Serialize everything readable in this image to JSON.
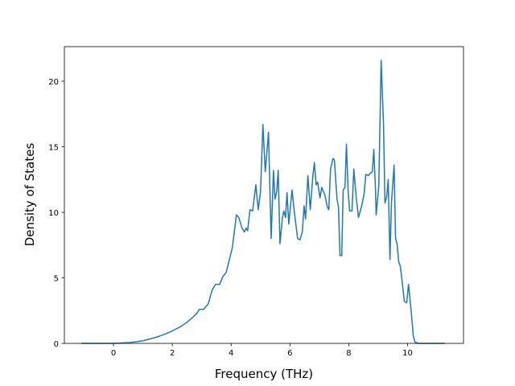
{
  "chart_data": {
    "type": "line",
    "x_label": "Frequency (THz)",
    "y_label": "Density of States",
    "x": [
      -1.09,
      0,
      0.52,
      1.01,
      1.5,
      1.75,
      2.0,
      2.3,
      2.49,
      2.7,
      2.84,
      2.92,
      3.06,
      3.22,
      3.36,
      3.47,
      3.61,
      3.72,
      3.83,
      3.93,
      4.04,
      4.18,
      4.26,
      4.37,
      4.45,
      4.51,
      4.56,
      4.64,
      4.73,
      4.84,
      4.92,
      5.0,
      5.08,
      5.16,
      5.27,
      5.36,
      5.44,
      5.49,
      5.55,
      5.6,
      5.66,
      5.74,
      5.79,
      5.85,
      5.9,
      5.96,
      6.07,
      6.15,
      6.26,
      6.34,
      6.42,
      6.48,
      6.53,
      6.61,
      6.69,
      6.78,
      6.83,
      6.89,
      6.94,
      7.02,
      7.08,
      7.19,
      7.27,
      7.32,
      7.38,
      7.46,
      7.51,
      7.6,
      7.65,
      7.7,
      7.76,
      7.81,
      7.87,
      7.92,
      7.98,
      8.03,
      8.11,
      8.17,
      8.25,
      8.33,
      8.44,
      8.52,
      8.58,
      8.66,
      8.74,
      8.8,
      8.85,
      8.91,
      8.93,
      9.02,
      9.1,
      9.18,
      9.23,
      9.29,
      9.34,
      9.4,
      9.45,
      9.54,
      9.59,
      9.64,
      9.7,
      9.75,
      9.81,
      9.89,
      9.97,
      10.03,
      10.08,
      10.14,
      10.19,
      10.25,
      10.36,
      11.26
    ],
    "series": [
      {
        "color": "#1f77b4",
        "values": [
          0,
          0,
          0.05,
          0.2,
          0.5,
          0.7,
          0.95,
          1.3,
          1.6,
          2.0,
          2.3,
          2.6,
          2.6,
          3.0,
          4.1,
          4.5,
          4.5,
          5.1,
          5.4,
          6.3,
          7.3,
          9.8,
          9.6,
          8.8,
          8.5,
          8.8,
          8.6,
          10.2,
          10.1,
          12.1,
          10.2,
          11.6,
          16.7,
          13.1,
          16.1,
          8.0,
          13.2,
          11.0,
          11.6,
          13.2,
          7.6,
          9.5,
          10.1,
          9.6,
          11.5,
          9.1,
          11.7,
          10.0,
          8.0,
          7.9,
          8.5,
          10.5,
          9.5,
          12.8,
          10.2,
          12.8,
          13.8,
          12.1,
          12.3,
          11.1,
          11.9,
          11.3,
          10.4,
          10.2,
          13.3,
          14.1,
          14.0,
          11.0,
          10.4,
          6.7,
          6.7,
          11.7,
          11.9,
          15.2,
          11.5,
          10.1,
          10.1,
          13.3,
          11.2,
          9.6,
          10.5,
          11.4,
          12.9,
          12.8,
          13.0,
          13.1,
          14.8,
          11.6,
          9.8,
          12.0,
          21.6,
          16.8,
          10.7,
          11.2,
          12.5,
          6.4,
          10.7,
          13.6,
          8.0,
          7.6,
          6.2,
          5.9,
          4.8,
          3.2,
          3.1,
          4.5,
          3.4,
          2.0,
          0.6,
          0.1,
          0,
          0
        ]
      }
    ],
    "xlim": [
      -1.67,
      11.9
    ],
    "xticks": [
      0,
      2,
      4,
      6,
      8,
      10
    ],
    "ylim": [
      0,
      22.64
    ],
    "yticks": [
      0,
      5,
      10,
      15,
      20
    ]
  }
}
